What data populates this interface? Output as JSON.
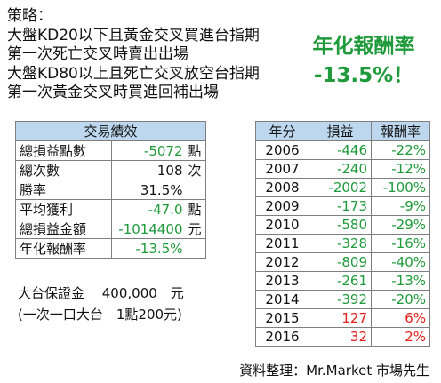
{
  "strategy": {
    "title": "策略：",
    "lines": [
      "大盤KD20以下且黃金交叉買進台指期",
      "第一次死亡交叉時賣出出場",
      "大盤KD80以上且死亡交叉放空台指期",
      "第一次黃金交叉時買進回補出場"
    ]
  },
  "highlight": {
    "label": "年化報酬率",
    "value": "-13.5%！"
  },
  "performance": {
    "header": "交易績效",
    "rows": [
      {
        "label": "總損益點數",
        "value": "-5072",
        "unit": "點"
      },
      {
        "label": "總次數",
        "value": "108",
        "unit": "次"
      },
      {
        "label": "勝率",
        "value": "31.5%",
        "unit": ""
      },
      {
        "label": "平均獲利",
        "value": "-47.0",
        "unit": "點"
      },
      {
        "label": "總損益金額",
        "value": "-1014400",
        "unit": "元"
      },
      {
        "label": "年化報酬率",
        "value": "-13.5%",
        "unit": ""
      }
    ]
  },
  "yearly": {
    "headers": [
      "年分",
      "損益",
      "報酬率"
    ],
    "rows": [
      {
        "year": "2006",
        "pl": "-446",
        "rate": "-22%"
      },
      {
        "year": "2007",
        "pl": "-240",
        "rate": "-12%"
      },
      {
        "year": "2008",
        "pl": "-2002",
        "rate": "-100%"
      },
      {
        "year": "2009",
        "pl": "-173",
        "rate": "-9%"
      },
      {
        "year": "2010",
        "pl": "-580",
        "rate": "-29%"
      },
      {
        "year": "2011",
        "pl": "-328",
        "rate": "-16%"
      },
      {
        "year": "2012",
        "pl": "-809",
        "rate": "-40%"
      },
      {
        "year": "2013",
        "pl": "-261",
        "rate": "-13%"
      },
      {
        "year": "2014",
        "pl": "-392",
        "rate": "-20%"
      },
      {
        "year": "2015",
        "pl": "127",
        "rate": "6%"
      },
      {
        "year": "2016",
        "pl": "32",
        "rate": "2%"
      }
    ]
  },
  "notes": {
    "margin": "大台保證金　 400,000　元",
    "contract": "(一次一口大台　1點200元)"
  },
  "source": "資料整理：Mr.Market 市場先生",
  "colors": {
    "positive": "#e0201b",
    "negative": "#1f9a3b",
    "header_bg": "#bdd7ee"
  }
}
